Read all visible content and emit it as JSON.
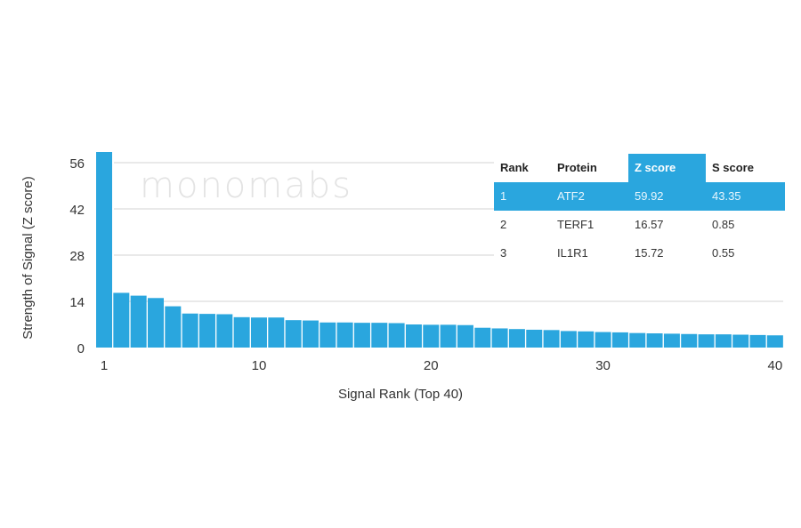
{
  "chart_data": {
    "type": "bar",
    "xlabel": "Signal Rank (Top 40)",
    "ylabel": "Strength of Signal (Z score)",
    "ylim": [
      0,
      56
    ],
    "yticks": [
      0,
      14,
      28,
      42,
      56
    ],
    "xticks": [
      1,
      10,
      20,
      30,
      40
    ],
    "grid": true,
    "bar_color": "#2aa6de",
    "categories": [
      1,
      2,
      3,
      4,
      5,
      6,
      7,
      8,
      9,
      10,
      11,
      12,
      13,
      14,
      15,
      16,
      17,
      18,
      19,
      20,
      21,
      22,
      23,
      24,
      25,
      26,
      27,
      28,
      29,
      30,
      31,
      32,
      33,
      34,
      35,
      36,
      37,
      38,
      39,
      40
    ],
    "values": [
      59.92,
      16.57,
      15.72,
      15.0,
      12.5,
      10.3,
      10.2,
      10.1,
      9.2,
      9.1,
      9.1,
      8.3,
      8.2,
      7.6,
      7.6,
      7.5,
      7.5,
      7.4,
      7.0,
      6.9,
      6.9,
      6.8,
      6.0,
      5.8,
      5.6,
      5.4,
      5.3,
      5.0,
      4.9,
      4.7,
      4.6,
      4.4,
      4.3,
      4.2,
      4.1,
      4.0,
      4.0,
      3.9,
      3.8,
      3.7
    ]
  },
  "watermark": "monomabs",
  "table": {
    "headers": [
      "Rank",
      "Protein",
      "Z score",
      "S score"
    ],
    "rows": [
      [
        "1",
        "ATF2",
        "59.92",
        "43.35"
      ],
      [
        "2",
        "TERF1",
        "16.57",
        "0.85"
      ],
      [
        "3",
        "IL1R1",
        "15.72",
        "0.55"
      ]
    ],
    "highlight_color": "#2aa6de"
  }
}
